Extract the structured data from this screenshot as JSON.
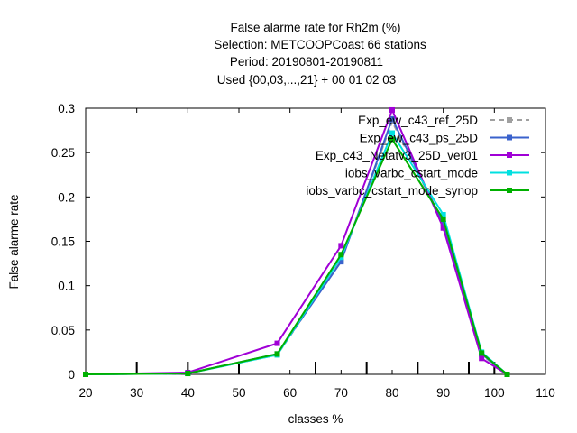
{
  "chart_data": {
    "type": "line",
    "title_lines": [
      "False alarme rate  for Rh2m (%)",
      "Selection: METCOOPCoast     66 stations",
      "Period: 20190801-20190811",
      "Used {00,03,...,21} + 00 01 02 03"
    ],
    "xlabel": "classes %",
    "ylabel": "False alarme rate",
    "xlim": [
      20,
      110
    ],
    "ylim": [
      0,
      0.3
    ],
    "x_ticks": [
      20,
      30,
      40,
      50,
      60,
      70,
      80,
      90,
      100,
      110
    ],
    "y_ticks": [
      0,
      0.05,
      0.1,
      0.15,
      0.2,
      0.25,
      0.3
    ],
    "x_tick_labels": [
      "20",
      "30",
      "40",
      "50",
      "60",
      "70",
      "80",
      "90",
      "100",
      "110"
    ],
    "y_tick_labels": [
      "0",
      "0.05",
      "0.1",
      "0.15",
      "0.2",
      "0.25",
      "0.3"
    ],
    "sample_marks_x": [
      30,
      40,
      50,
      65,
      75,
      85,
      95,
      100
    ],
    "grid": false,
    "legend_position": "top-right",
    "x": [
      20,
      40,
      57.5,
      70,
      80,
      90,
      97.5,
      102.5
    ],
    "series": [
      {
        "name": "Exp_ew_c43_ref_25D",
        "color": "#a0a0a0",
        "dash": true,
        "values": [
          0,
          0.001,
          0.022,
          0.128,
          0.285,
          0.17,
          0.022,
          0
        ]
      },
      {
        "name": "Exp_ew_c43_ps_25D",
        "color": "#3a62cc",
        "dash": false,
        "values": [
          0,
          0.001,
          0.023,
          0.127,
          0.288,
          0.17,
          0.023,
          0
        ]
      },
      {
        "name": "Exp_c43_Netatv3_25D_ver01",
        "color": "#a000d6",
        "dash": false,
        "values": [
          0,
          0.002,
          0.035,
          0.145,
          0.298,
          0.165,
          0.018,
          0
        ]
      },
      {
        "name": "iobs_varbc_cstart_mode",
        "color": "#00e0e0",
        "dash": false,
        "values": [
          0,
          0.001,
          0.022,
          0.132,
          0.272,
          0.18,
          0.025,
          0
        ]
      },
      {
        "name": "iobs_varbc_cstart_mode_synop",
        "color": "#00b000",
        "dash": false,
        "values": [
          0,
          0.001,
          0.023,
          0.135,
          0.265,
          0.175,
          0.024,
          0
        ]
      }
    ]
  }
}
